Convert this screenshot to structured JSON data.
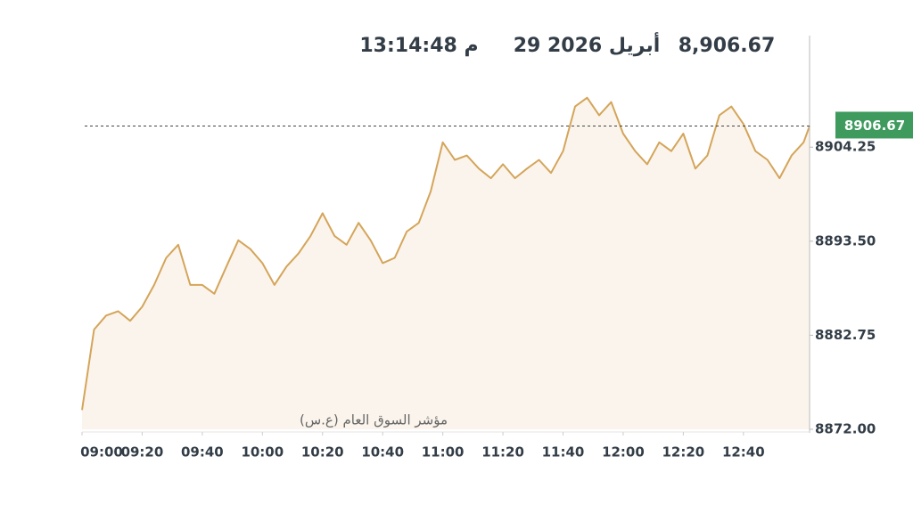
{
  "chart_data": {
    "type": "area",
    "header_value": "8,906.67",
    "header_date": "29 أبريل 2026",
    "header_time": "13:14:48 م",
    "current_value": 8906.67,
    "x": [
      "09:00",
      "09:04",
      "09:08",
      "09:12",
      "09:16",
      "09:20",
      "09:24",
      "09:28",
      "09:32",
      "09:36",
      "09:40",
      "09:44",
      "09:48",
      "09:52",
      "09:56",
      "10:00",
      "10:04",
      "10:08",
      "10:12",
      "10:16",
      "10:20",
      "10:24",
      "10:28",
      "10:32",
      "10:36",
      "10:40",
      "10:44",
      "10:48",
      "10:52",
      "10:56",
      "11:00",
      "11:04",
      "11:08",
      "11:12",
      "11:16",
      "11:20",
      "11:24",
      "11:28",
      "11:32",
      "11:36",
      "11:40",
      "11:44",
      "11:48",
      "11:52",
      "11:56",
      "12:00",
      "12:04",
      "12:08",
      "12:12",
      "12:16",
      "12:20",
      "12:24",
      "12:28",
      "12:32",
      "12:36",
      "12:40",
      "12:44",
      "12:48",
      "12:52",
      "12:56",
      "13:00",
      "13:02"
    ],
    "series": [
      {
        "name": "مؤشر السوق العام (ع.س)",
        "color": "#d4a55a",
        "fill": "#fbf4ec",
        "values": [
          8874.2,
          8883.4,
          8885,
          8885.5,
          8884.4,
          8886,
          8888.5,
          8891.6,
          8893.1,
          8888.5,
          8888.5,
          8887.5,
          8890.6,
          8893.6,
          8892.6,
          8891,
          8888.5,
          8890.6,
          8892.1,
          8894.1,
          8896.7,
          8894.1,
          8893.1,
          8895.6,
          8893.6,
          8891,
          8891.6,
          8894.6,
          8895.6,
          8899.2,
          8904.8,
          8902.8,
          8903.3,
          8901.8,
          8900.7,
          8902.3,
          8900.7,
          8901.8,
          8902.8,
          8901.3,
          8903.8,
          8908.9,
          8909.9,
          8907.9,
          8909.4,
          8905.8,
          8903.8,
          8902.3,
          8904.8,
          8903.8,
          8905.8,
          8901.8,
          8903.3,
          8907.9,
          8908.9,
          8906.9,
          8903.8,
          8902.8,
          8900.7,
          8903.3,
          8904.8,
          8906.67
        ]
      }
    ],
    "xlim": [
      "09:00",
      "13:02"
    ],
    "xticks": [
      "09:00",
      "09:20",
      "09:40",
      "10:00",
      "10:20",
      "10:40",
      "11:00",
      "11:20",
      "11:40",
      "12:00",
      "12:20",
      "12:40"
    ],
    "ylim": [
      8872,
      8917
    ],
    "yticks": [
      {
        "value": 8872,
        "label": "8872.00"
      },
      {
        "value": 8882.75,
        "label": "8882.75"
      },
      {
        "value": 8893.5,
        "label": "8893.50"
      },
      {
        "value": 8904.25,
        "label": "8904.25"
      }
    ]
  }
}
